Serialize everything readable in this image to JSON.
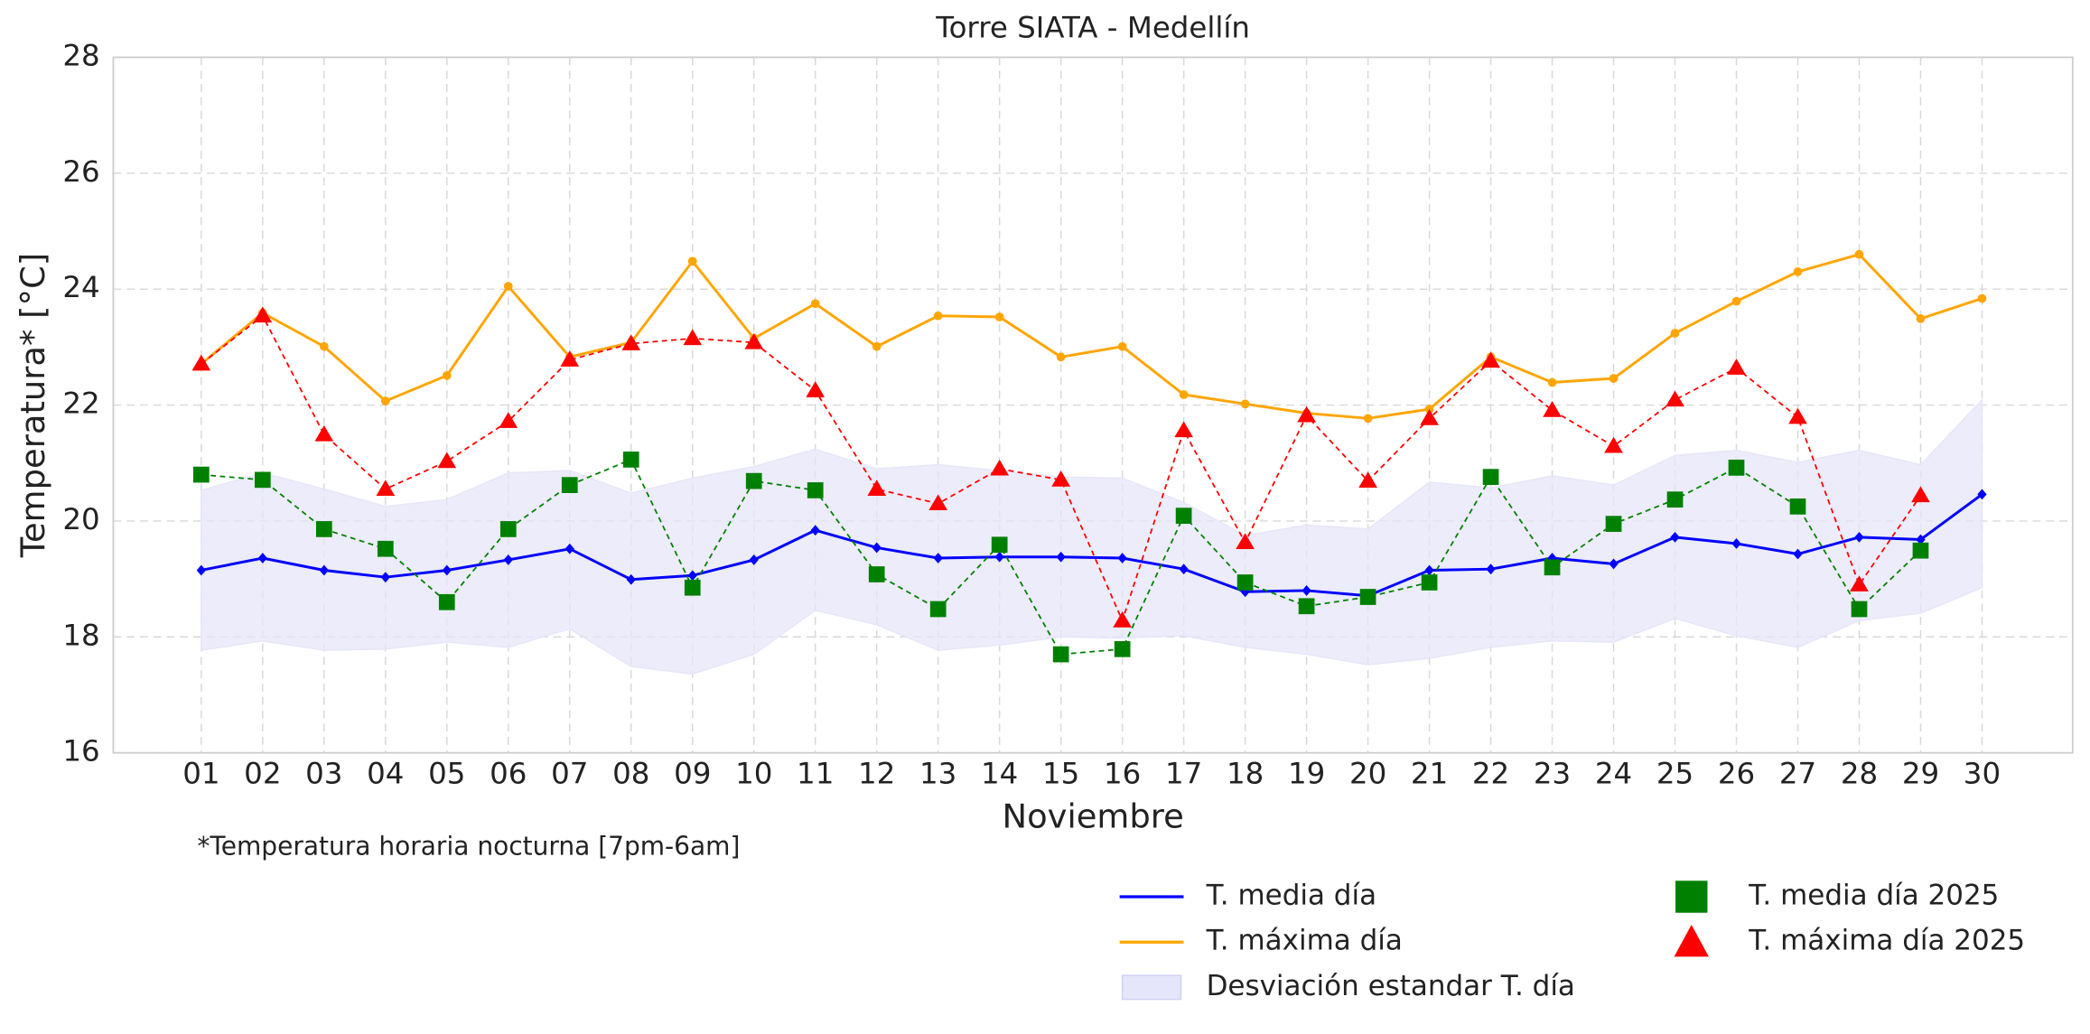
{
  "chart_data": {
    "type": "line",
    "title": "Torre SIATA - Medellín",
    "xlabel": "Noviembre",
    "ylabel": "Temperatura* [°C]",
    "annotation": "*Temperatura horaria nocturna [7pm-6am]",
    "categories": [
      "01",
      "02",
      "03",
      "04",
      "05",
      "06",
      "07",
      "08",
      "09",
      "10",
      "11",
      "12",
      "13",
      "14",
      "15",
      "16",
      "17",
      "18",
      "19",
      "20",
      "21",
      "22",
      "23",
      "24",
      "25",
      "26",
      "27",
      "28",
      "29",
      "30"
    ],
    "ylim": [
      16,
      28
    ],
    "yticks": [
      16,
      18,
      20,
      22,
      24,
      26,
      28
    ],
    "grid": true,
    "series": [
      {
        "name": "T. media día",
        "color": "#0000ff",
        "kind": "line",
        "marker": "diamond",
        "dashed": false,
        "values": [
          19.15,
          19.36,
          19.15,
          19.03,
          19.15,
          19.33,
          19.52,
          18.99,
          19.06,
          19.33,
          19.84,
          19.54,
          19.36,
          19.38,
          19.38,
          19.36,
          19.17,
          18.78,
          18.8,
          18.71,
          19.15,
          19.17,
          19.36,
          19.26,
          19.72,
          19.61,
          19.43,
          19.72,
          19.68,
          20.46
        ]
      },
      {
        "name": "T. máxima día",
        "color": "#ffa500",
        "kind": "line",
        "marker": "circle",
        "dashed": false,
        "values": [
          22.71,
          23.59,
          23.01,
          22.07,
          22.51,
          24.05,
          22.83,
          23.08,
          24.48,
          23.15,
          23.75,
          23.01,
          23.54,
          23.52,
          22.83,
          23.01,
          22.18,
          22.02,
          21.86,
          21.77,
          21.93,
          22.83,
          22.39,
          22.46,
          23.24,
          23.79,
          24.3,
          24.6,
          23.49,
          23.84
        ]
      },
      {
        "name": "Desviación estandar T. día",
        "color": "#e6e6fa",
        "kind": "band",
        "lower": [
          17.77,
          17.93,
          17.77,
          17.79,
          17.91,
          17.82,
          18.14,
          17.49,
          17.36,
          17.7,
          18.46,
          18.21,
          17.77,
          17.86,
          18.0,
          17.98,
          18.02,
          17.82,
          17.7,
          17.52,
          17.63,
          17.82,
          17.93,
          17.91,
          18.32,
          18.02,
          17.82,
          18.28,
          18.41,
          18.85
        ],
        "upper": [
          20.53,
          20.83,
          20.55,
          20.25,
          20.37,
          20.83,
          20.87,
          20.48,
          20.74,
          20.94,
          21.24,
          20.9,
          20.97,
          20.87,
          20.76,
          20.74,
          20.32,
          19.75,
          19.93,
          19.86,
          20.67,
          20.57,
          20.78,
          20.62,
          21.13,
          21.22,
          21.01,
          21.22,
          20.97,
          22.09
        ]
      },
      {
        "name": "T. media día 2025",
        "color": "#008000",
        "kind": "line",
        "marker": "square",
        "dashed": true,
        "values": [
          20.8,
          20.71,
          19.86,
          19.52,
          18.6,
          19.86,
          20.62,
          21.06,
          18.85,
          20.69,
          20.53,
          19.08,
          18.48,
          19.59,
          17.7,
          17.79,
          20.09,
          18.94,
          18.53,
          18.69,
          18.94,
          20.76,
          19.2,
          19.95,
          20.37,
          20.92,
          20.25,
          18.48,
          19.49,
          null
        ]
      },
      {
        "name": "T. máxima día 2025",
        "color": "#ff0000",
        "kind": "line",
        "marker": "triangle",
        "dashed": true,
        "values": [
          22.71,
          23.54,
          21.49,
          20.55,
          21.03,
          21.72,
          22.78,
          23.06,
          23.15,
          23.08,
          22.25,
          20.55,
          20.3,
          20.9,
          20.71,
          18.28,
          21.56,
          19.63,
          21.82,
          20.69,
          21.77,
          22.76,
          21.91,
          21.29,
          22.09,
          22.64,
          21.79,
          18.9,
          20.44,
          null
        ]
      }
    ]
  }
}
